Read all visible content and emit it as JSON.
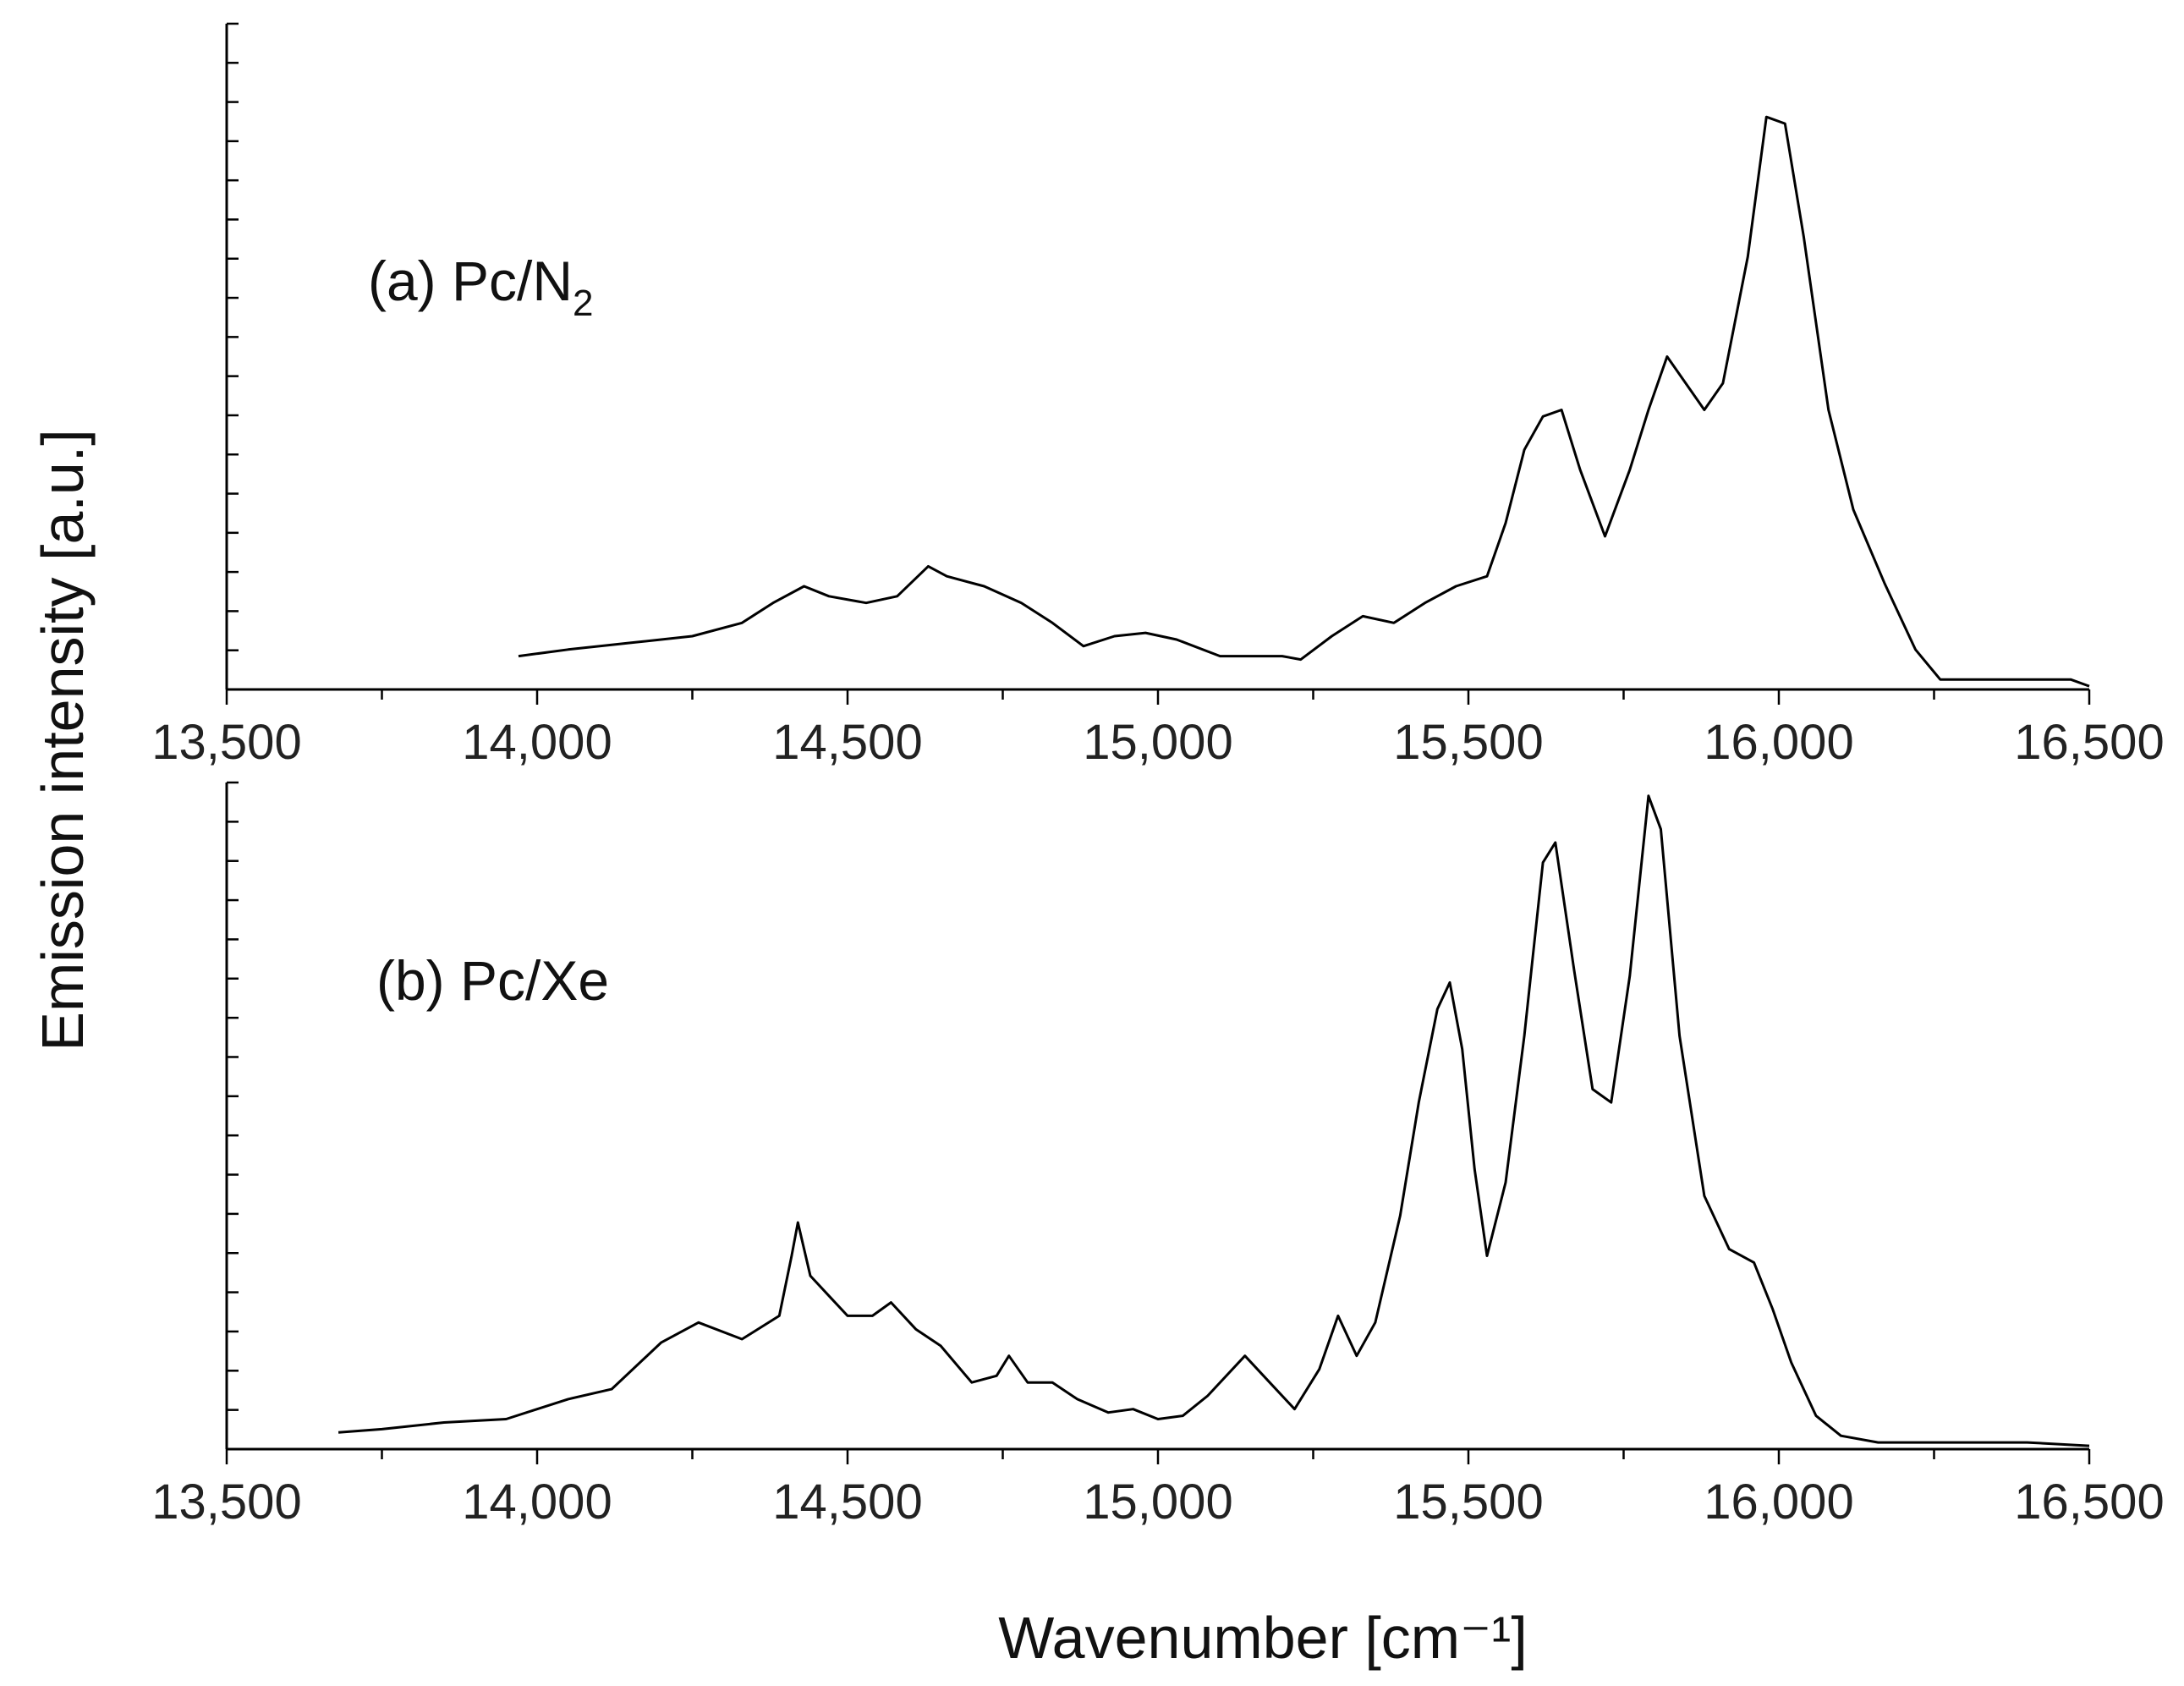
{
  "ylabel": "Emission intensity [a.u.]",
  "xlabel": "Wavenumber [cm⁻¹]",
  "chart_data": [
    {
      "type": "line",
      "panel_label": "(a) Pc/N",
      "panel_label_sub": "2",
      "xlim": [
        13500,
        16500
      ],
      "ylim": [
        0,
        1.0
      ],
      "xticks": [
        "13,500",
        "14,000",
        "14,500",
        "15,000",
        "15,500",
        "16,000",
        "16,500"
      ],
      "xtick_values": [
        13500,
        14000,
        14500,
        15000,
        15500,
        16000,
        16500
      ],
      "yticks_minor_count": 17,
      "series": [
        {
          "x": [
            13970,
            14050,
            14150,
            14250,
            14330,
            14380,
            14430,
            14470,
            14530,
            14580,
            14630,
            14660,
            14720,
            14780,
            14830,
            14880,
            14930,
            14980,
            15030,
            15100,
            15200,
            15230,
            15280,
            15330,
            15380,
            15430,
            15480,
            15530,
            15560,
            15590,
            15620,
            15650,
            15680,
            15720,
            15760,
            15790,
            15820,
            15850,
            15880,
            15910,
            15950,
            15980,
            16010,
            16040,
            16080,
            16120,
            16170,
            16220,
            16260,
            16350,
            16470,
            16500
          ],
          "y": [
            0.05,
            0.06,
            0.07,
            0.08,
            0.1,
            0.13,
            0.155,
            0.14,
            0.13,
            0.14,
            0.185,
            0.17,
            0.155,
            0.13,
            0.1,
            0.065,
            0.08,
            0.085,
            0.075,
            0.05,
            0.05,
            0.045,
            0.08,
            0.11,
            0.1,
            0.13,
            0.155,
            0.17,
            0.25,
            0.36,
            0.41,
            0.42,
            0.33,
            0.23,
            0.33,
            0.42,
            0.5,
            0.46,
            0.42,
            0.46,
            0.65,
            0.86,
            0.85,
            0.68,
            0.42,
            0.27,
            0.16,
            0.06,
            0.015,
            0.015,
            0.015,
            0.005
          ]
        }
      ]
    },
    {
      "type": "line",
      "panel_label": "(b)  Pc/Xe",
      "xlim": [
        13500,
        16500
      ],
      "ylim": [
        0,
        1.0
      ],
      "xticks": [
        "13,500",
        "14,000",
        "14,500",
        "15,000",
        "15,500",
        "16,000",
        "16,500"
      ],
      "xtick_values": [
        13500,
        14000,
        14500,
        15000,
        15500,
        16000,
        16500
      ],
      "yticks_minor_count": 17,
      "series": [
        {
          "x": [
            13680,
            13750,
            13850,
            13950,
            14000,
            14050,
            14120,
            14200,
            14260,
            14330,
            14390,
            14410,
            14420,
            14440,
            14470,
            14500,
            14540,
            14570,
            14610,
            14650,
            14700,
            14740,
            14760,
            14790,
            14830,
            14870,
            14920,
            14960,
            15000,
            15040,
            15080,
            15140,
            15180,
            15220,
            15260,
            15290,
            15320,
            15350,
            15390,
            15420,
            15450,
            15470,
            15490,
            15510,
            15530,
            15560,
            15590,
            15620,
            15640,
            15670,
            15700,
            15730,
            15760,
            15790,
            15810,
            15840,
            15880,
            15920,
            15960,
            15990,
            16020,
            16060,
            16100,
            16160,
            16250,
            16400,
            16500
          ],
          "y": [
            0.025,
            0.03,
            0.04,
            0.045,
            0.06,
            0.075,
            0.09,
            0.16,
            0.19,
            0.165,
            0.2,
            0.29,
            0.34,
            0.26,
            0.23,
            0.2,
            0.2,
            0.22,
            0.18,
            0.155,
            0.1,
            0.11,
            0.14,
            0.1,
            0.1,
            0.075,
            0.055,
            0.06,
            0.045,
            0.05,
            0.08,
            0.14,
            0.1,
            0.06,
            0.12,
            0.2,
            0.14,
            0.19,
            0.35,
            0.52,
            0.66,
            0.7,
            0.6,
            0.42,
            0.29,
            0.4,
            0.62,
            0.88,
            0.91,
            0.72,
            0.54,
            0.52,
            0.71,
            0.98,
            0.93,
            0.62,
            0.38,
            0.3,
            0.28,
            0.21,
            0.13,
            0.05,
            0.02,
            0.01,
            0.01,
            0.01,
            0.005
          ]
        }
      ]
    }
  ]
}
